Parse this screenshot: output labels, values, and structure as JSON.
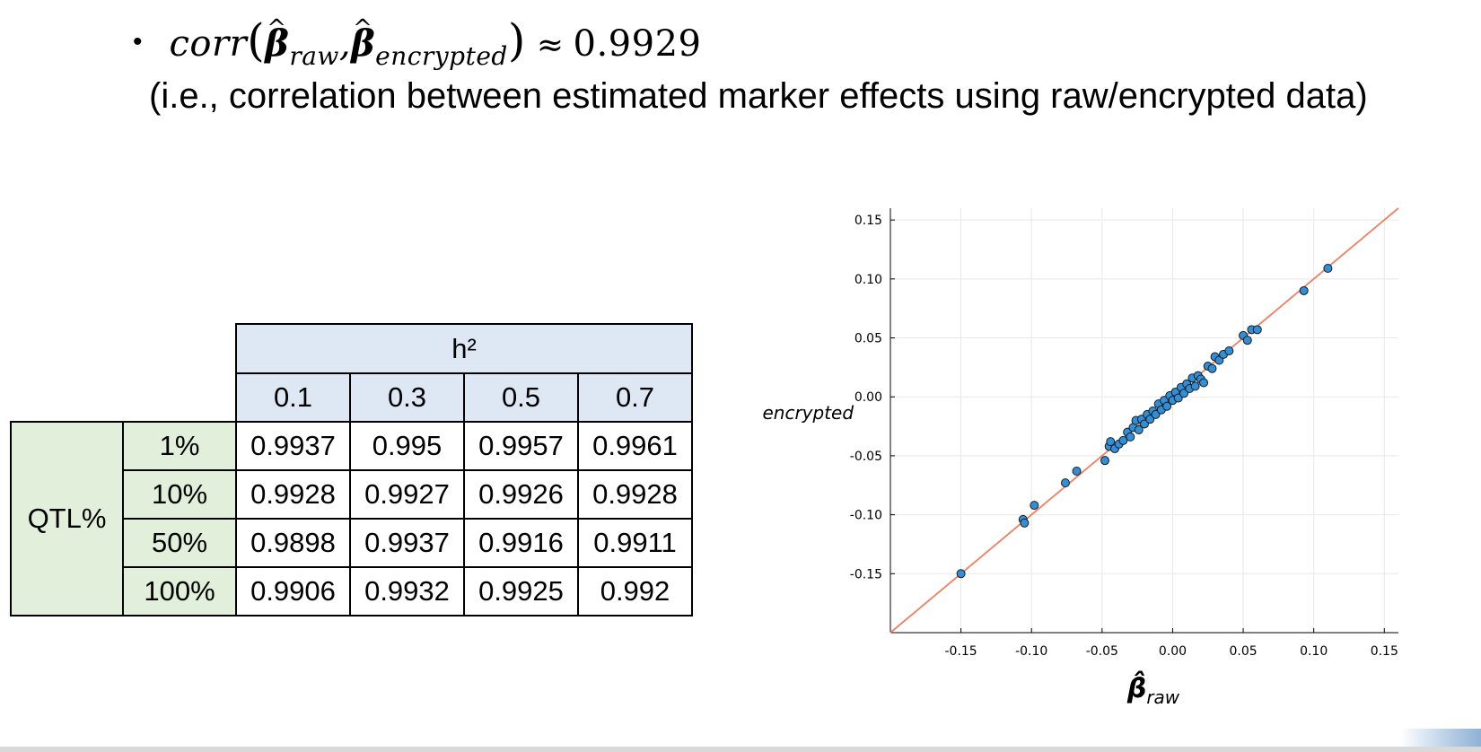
{
  "header": {
    "bullet": "•",
    "formula_func": "corr",
    "formula_sub1": "raw",
    "formula_sub2": "encrypted",
    "formula_approx": "≈",
    "formula_value": "0.9929",
    "subtitle": "(i.e., correlation between estimated marker effects using raw/encrypted data)"
  },
  "table": {
    "col_group_label": "h²",
    "row_group_label": "QTL%",
    "columns": [
      "0.1",
      "0.3",
      "0.5",
      "0.7"
    ],
    "rows": [
      {
        "label": "1%",
        "values": [
          "0.9937",
          "0.995",
          "0.9957",
          "0.9961"
        ]
      },
      {
        "label": "10%",
        "values": [
          "0.9928",
          "0.9927",
          "0.9926",
          "0.9928"
        ]
      },
      {
        "label": "50%",
        "values": [
          "0.9898",
          "0.9937",
          "0.9916",
          "0.9911"
        ]
      },
      {
        "label": "100%",
        "values": [
          "0.9906",
          "0.9932",
          "0.9925",
          "0.992"
        ]
      }
    ]
  },
  "chart_data": {
    "type": "scatter",
    "xlabel": "β̂raw",
    "ylabel": "β̂encrypted",
    "xlabel_sub": "raw",
    "ylabel_sub": "encrypted",
    "xlim": [
      -0.2,
      0.16
    ],
    "ylim": [
      -0.2,
      0.16
    ],
    "xticks": [
      "-0.15",
      "-0.10",
      "-0.05",
      "0.00",
      "0.05",
      "0.10",
      "0.15"
    ],
    "yticks": [
      "-0.15",
      "-0.10",
      "-0.05",
      "0.00",
      "0.05",
      "0.10",
      "0.15"
    ],
    "tick_values": [
      -0.15,
      -0.1,
      -0.05,
      0.0,
      0.05,
      0.1,
      0.15
    ],
    "grid": true,
    "reference_line": "y = x",
    "colors": {
      "points": "#2f8fd8",
      "point_edge": "#1a1a1a",
      "line": "#f08060",
      "grid": "#e8e8e8"
    },
    "x": [
      -0.15,
      -0.106,
      -0.105,
      -0.098,
      -0.076,
      -0.068,
      -0.048,
      -0.045,
      -0.044,
      -0.041,
      -0.038,
      -0.035,
      -0.032,
      -0.03,
      -0.028,
      -0.026,
      -0.024,
      -0.022,
      -0.02,
      -0.018,
      -0.016,
      -0.014,
      -0.012,
      -0.01,
      -0.008,
      -0.006,
      -0.004,
      -0.002,
      0.0,
      0.002,
      0.004,
      0.006,
      0.008,
      0.01,
      0.012,
      0.014,
      0.016,
      0.018,
      0.02,
      0.022,
      0.025,
      0.028,
      0.03,
      0.033,
      0.036,
      0.04,
      0.05,
      0.053,
      0.056,
      0.06,
      0.093,
      0.11
    ],
    "y": [
      -0.15,
      -0.104,
      -0.107,
      -0.092,
      -0.073,
      -0.063,
      -0.054,
      -0.042,
      -0.038,
      -0.044,
      -0.04,
      -0.037,
      -0.03,
      -0.034,
      -0.026,
      -0.02,
      -0.028,
      -0.019,
      -0.023,
      -0.015,
      -0.019,
      -0.012,
      -0.015,
      -0.006,
      -0.011,
      -0.003,
      -0.008,
      0.001,
      -0.003,
      0.004,
      -0.001,
      0.008,
      0.003,
      0.011,
      0.007,
      0.016,
      0.009,
      0.018,
      0.015,
      0.012,
      0.026,
      0.024,
      0.034,
      0.031,
      0.036,
      0.039,
      0.052,
      0.048,
      0.057,
      0.057,
      0.09,
      0.109
    ]
  }
}
